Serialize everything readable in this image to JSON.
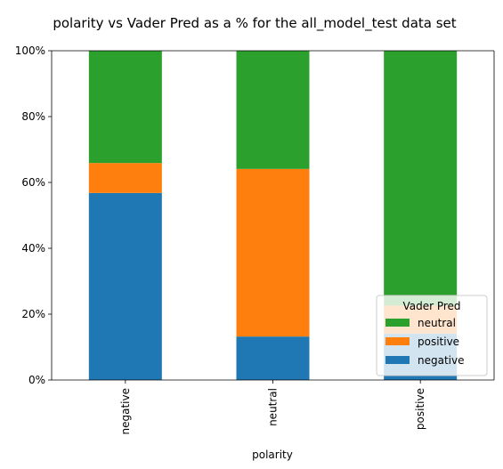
{
  "chart_data": {
    "type": "bar",
    "stacked": true,
    "title": "polarity vs Vader Pred as a % for the all_model_test data set",
    "xlabel": "polarity",
    "ylabel": "",
    "categories": [
      "negative",
      "neutral",
      "positive"
    ],
    "ylim": [
      0,
      100
    ],
    "yticks": [
      "0%",
      "20%",
      "40%",
      "60%",
      "80%",
      "100%"
    ],
    "series": [
      {
        "name": "negative",
        "color": "#1f77b4",
        "values": [
          56.8,
          13.2,
          14.1
        ]
      },
      {
        "name": "positive",
        "color": "#ff7f0e",
        "values": [
          9.1,
          50.9,
          8.5
        ]
      },
      {
        "name": "neutral",
        "color": "#2ca02c",
        "values": [
          34.1,
          35.9,
          77.4
        ]
      }
    ],
    "legend": {
      "title": "Vader Pred",
      "placement": "lower-right",
      "order": [
        "neutral",
        "positive",
        "negative"
      ]
    },
    "grid": false
  }
}
